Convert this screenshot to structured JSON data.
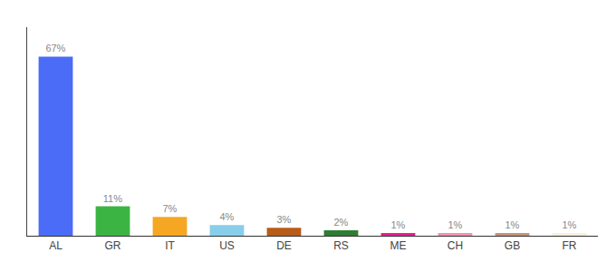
{
  "chart_data": {
    "type": "bar",
    "categories": [
      "AL",
      "GR",
      "IT",
      "US",
      "DE",
      "RS",
      "ME",
      "CH",
      "GB",
      "FR"
    ],
    "values": [
      67,
      11,
      7,
      4,
      3,
      2,
      1,
      1,
      1,
      1
    ],
    "value_labels": [
      "67%",
      "11%",
      "7%",
      "4%",
      "3%",
      "2%",
      "1%",
      "1%",
      "1%",
      "1%"
    ],
    "colors": [
      "#4a6cf7",
      "#3cb444",
      "#f5a623",
      "#87ceeb",
      "#b85c1a",
      "#2e7d32",
      "#e91e8c",
      "#f48fb1",
      "#c9907a",
      "#f5f0d8"
    ],
    "ylim": [
      0,
      78
    ],
    "data_labels": true,
    "tick_labels": "x",
    "grid": false
  }
}
